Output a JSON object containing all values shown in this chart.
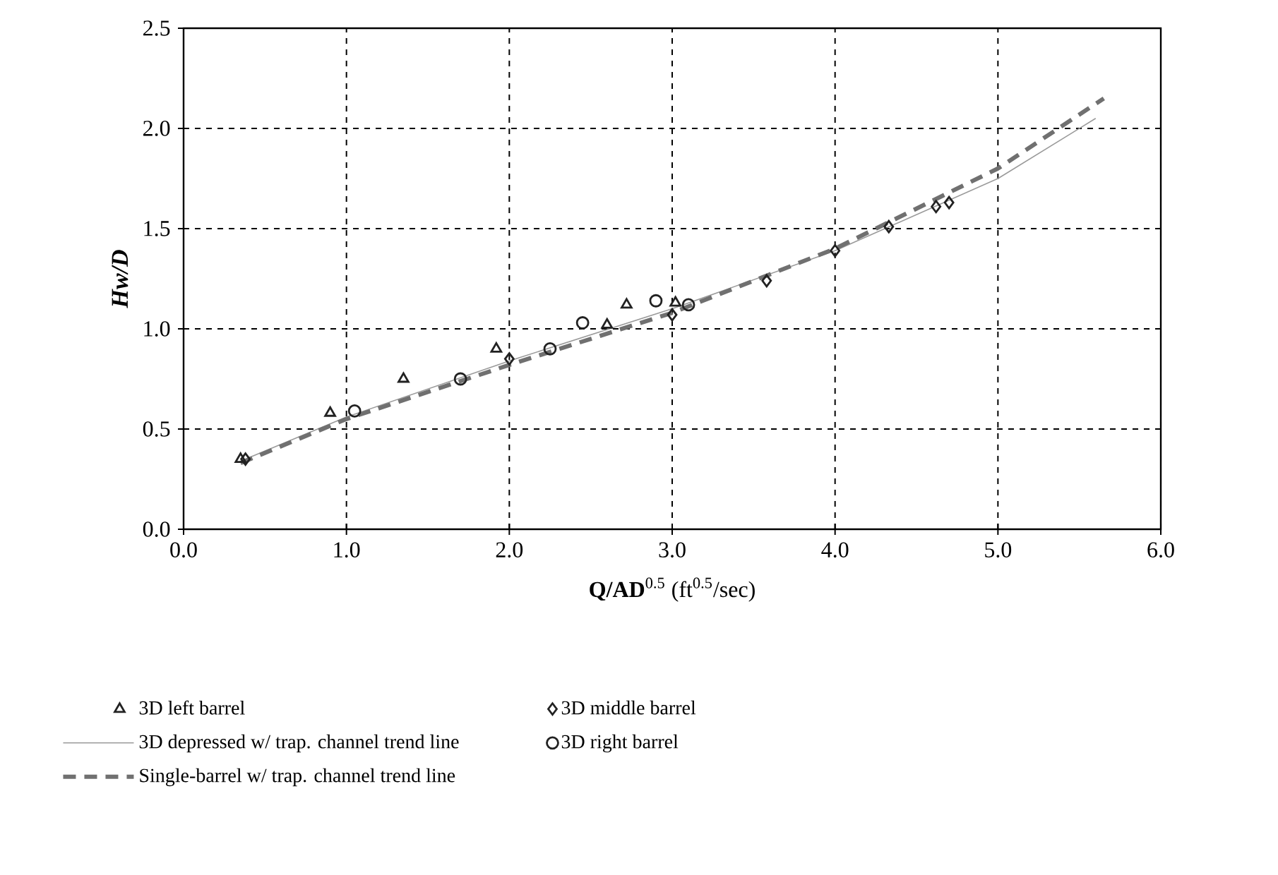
{
  "chart_data": {
    "type": "scatter",
    "xlabel": "**Q/AD**$^{0.5}$  (ft$^{0.5}$/sec)",
    "ylabel": "Hw/D",
    "xlim": [
      0,
      6
    ],
    "ylim": [
      0,
      2.5
    ],
    "xticks": [
      {
        "value": 0,
        "label": "0.0"
      },
      {
        "value": 1,
        "label": "1.0"
      },
      {
        "value": 2,
        "label": "2.0"
      },
      {
        "value": 3,
        "label": "3.0"
      },
      {
        "value": 4,
        "label": "4.0"
      },
      {
        "value": 5,
        "label": "5.0"
      },
      {
        "value": 6,
        "label": "6.0"
      }
    ],
    "yticks": [
      {
        "value": 0,
        "label": "0.0"
      },
      {
        "value": 0.5,
        "label": "0.5"
      },
      {
        "value": 1,
        "label": "1.0"
      },
      {
        "value": 1.5,
        "label": "1.5"
      },
      {
        "value": 2,
        "label": "2.0"
      },
      {
        "value": 2.5,
        "label": "2.5"
      }
    ],
    "grid": true,
    "legend": "bottom",
    "series": [
      {
        "name": "3D left barrel",
        "marker": "triangle",
        "color": "#222222",
        "x": [
          0.35,
          0.9,
          1.35,
          1.92,
          2.6,
          2.72,
          3.02
        ],
        "values": [
          0.35,
          0.58,
          0.75,
          0.9,
          1.02,
          1.12,
          1.13
        ]
      },
      {
        "name": "3D middle barrel",
        "marker": "diamond",
        "color": "#222222",
        "x": [
          0.38,
          2.0,
          3.0,
          3.58,
          4.0,
          4.33,
          4.62,
          4.7
        ],
        "values": [
          0.35,
          0.85,
          1.07,
          1.24,
          1.39,
          1.51,
          1.61,
          1.63
        ]
      },
      {
        "name": "3D depressed w/ trap. channel trend line",
        "type": "line",
        "line_style": "solid",
        "color": "#9a9a9a",
        "x": [
          0.35,
          1,
          2,
          3,
          4,
          5,
          5.6
        ],
        "values": [
          0.34,
          0.56,
          0.84,
          1.1,
          1.39,
          1.75,
          2.05
        ]
      },
      {
        "name": "3D right barrel",
        "marker": "circle",
        "color": "#222222",
        "x": [
          1.05,
          1.7,
          2.25,
          2.45,
          2.9,
          3.1
        ],
        "values": [
          0.59,
          0.75,
          0.9,
          1.03,
          1.14,
          1.12
        ]
      },
      {
        "name": "Single-barrel w/ trap. channel trend line",
        "type": "line",
        "line_style": "dashed",
        "color": "#707070",
        "x": [
          0.35,
          1,
          2,
          3,
          4,
          5,
          5.65
        ],
        "values": [
          0.33,
          0.55,
          0.82,
          1.08,
          1.4,
          1.8,
          2.15
        ]
      }
    ]
  }
}
